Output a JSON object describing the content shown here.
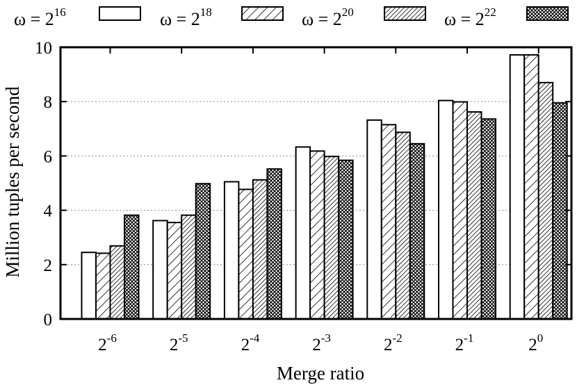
{
  "chart_data": {
    "type": "bar",
    "xlabel": "Merge ratio",
    "ylabel": "Million tuples per second",
    "ylim": [
      0,
      10
    ],
    "yticks": [
      "0",
      "2",
      "4",
      "6",
      "8",
      "10"
    ],
    "grid": "horizontal dotted",
    "legend_position": "top",
    "categories": [
      {
        "base": "2",
        "exp": "-6"
      },
      {
        "base": "2",
        "exp": "-5"
      },
      {
        "base": "2",
        "exp": "-4"
      },
      {
        "base": "2",
        "exp": "-3"
      },
      {
        "base": "2",
        "exp": "-2"
      },
      {
        "base": "2",
        "exp": "-1"
      },
      {
        "base": "2",
        "exp": "0"
      }
    ],
    "series": [
      {
        "name_prefix": "ω = 2",
        "name_exp": "16",
        "pattern": "white",
        "values": [
          2.45,
          3.62,
          5.05,
          6.33,
          7.32,
          8.04,
          9.72
        ]
      },
      {
        "name_prefix": "ω = 2",
        "name_exp": "18",
        "pattern": "sparse-diagonal",
        "values": [
          2.42,
          3.55,
          4.77,
          6.18,
          7.15,
          7.99,
          9.72
        ]
      },
      {
        "name_prefix": "ω = 2",
        "name_exp": "20",
        "pattern": "dense-diagonal",
        "values": [
          2.69,
          3.82,
          5.12,
          5.98,
          6.87,
          7.62,
          8.7
        ]
      },
      {
        "name_prefix": "ω = 2",
        "name_exp": "22",
        "pattern": "crosshatch",
        "values": [
          3.82,
          4.98,
          5.52,
          5.84,
          6.45,
          7.36,
          7.95
        ]
      }
    ]
  }
}
